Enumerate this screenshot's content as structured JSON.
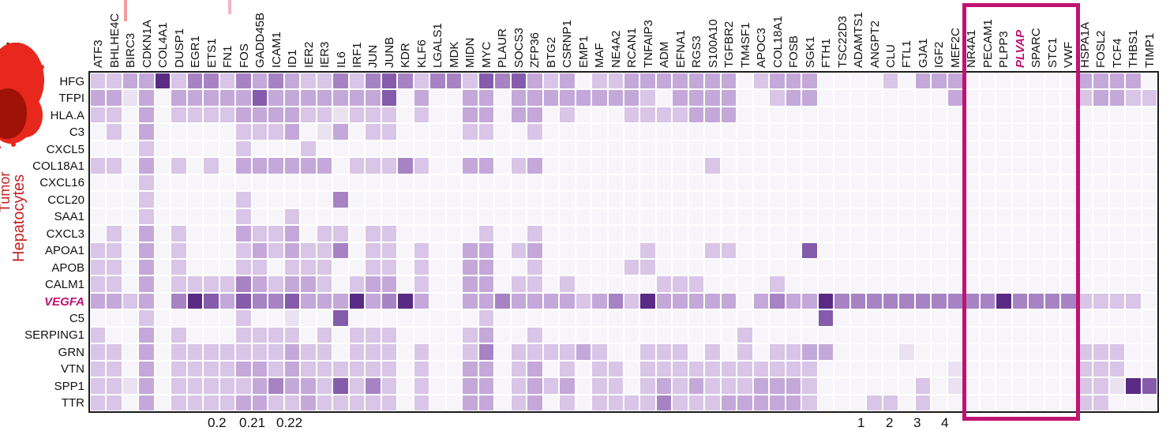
{
  "page": {
    "cropped_title_fragment": "y",
    "side_labels": {
      "hepatocytes": "Hepatocytes",
      "partial_red_label": "Tumor"
    },
    "colors": {
      "highlight_magenta": "#c01371",
      "side_label_red": "#c32222",
      "blob_red": "#e8281c",
      "blob_dark_red": "#9e1306"
    }
  },
  "legend": {
    "left": [
      "0.2",
      "0.21",
      "0.22"
    ],
    "right": [
      "1",
      "2",
      "3",
      "4"
    ]
  },
  "chart_data": {
    "type": "heatmap",
    "title": "",
    "xlabel": "",
    "ylabel": "",
    "columns": [
      "ATF3",
      "BHLHE4C",
      "BIRC3",
      "CDKN1A",
      "COL4A1",
      "DUSP1",
      "EGR1",
      "ETS1",
      "FN1",
      "FOS",
      "GADD45B",
      "ICAM1",
      "ID1",
      "IER2",
      "IER3",
      "IL6",
      "IRF1",
      "JUN",
      "JUNB",
      "KDR",
      "KLF6",
      "LGALS1",
      "MDK",
      "MIDN",
      "MYC",
      "PLAUR",
      "SOCS3",
      "ZFP36",
      "BTG2",
      "CSRNP1",
      "EMP1",
      "MAF",
      "NE4A2",
      "RCAN1",
      "TNFAIP3",
      "ADM",
      "EFNA1",
      "RGS3",
      "S100A10",
      "TGFBR2",
      "TM4SF1",
      "APOC3",
      "COL18A1",
      "FOSB",
      "SGK1",
      "FTH1",
      "TSC22D3",
      "ADAMTS1",
      "ANGPT2",
      "CLU",
      "FTL1",
      "GJA1",
      "IGF2",
      "MEF2C",
      "NR4A1",
      "PECAM1",
      "PLPP3",
      "PLVAP",
      "SPARC",
      "STC1",
      "VWF",
      "HSPA1A",
      "FOSL2",
      "TCF4",
      "THBS1",
      "TIMP1"
    ],
    "rows": [
      "HFG",
      "TFPI",
      "HLA.A",
      "C3",
      "CXCL5",
      "COL18A1",
      "CXCL16",
      "CCL20",
      "SAA1",
      "CXCL3",
      "APOA1",
      "APOB",
      "CALM1",
      "VEGFA",
      "C5",
      "SERPING1",
      "GRN",
      "VTN",
      "SPP1",
      "TTR"
    ],
    "values_scale": "ordinal shading level per cell, 0 = near-white to 6 = darkest purple, estimated from pixel intensity",
    "palette": [
      "#f7f5f9",
      "#eae1f1",
      "#d9c5e7",
      "#c5a8da",
      "#a783c4",
      "#855bab",
      "#5a2b85"
    ],
    "values": [
      "223362442434322424542442545323022333333302333000020333000000033330",
      "331303333353333333503003303333333320333300233000000003000000023322",
      "220302222333322122202003303302000222233300000000000000000000000000",
      "020300000222301302200002200200000000000000000000000000000000000000",
      "000200000200020000000000000000000000000000000000000000000000000000",
      "220302020333333022242003302300000000002000000000000000000000000000",
      "000200000000000000000000000000000000000000000000000000000000000000",
      "000200000200000400000000000000000000000000000000000000000000000000",
      "000200000200200000000000000000000000000000000000000000000000000000",
      "020302000322302202200000200200000000000000000000000000000000000000",
      "220302000232322402202003302300000020002200005000000000000000000000",
      "220302000220222002202003300200000220000000000000000000000000000000",
      "220302222432332023302003302202000002220000200000000000000000000000",
      "332304653544533363463003343333234263333303433644444444446444422220",
      "000200000200100500000000200000000000000000000500000000000000000000",
      "200302000222202022200002300200000000000020000000000000000000000000",
      "220302222222322022202002402222320022202020223300001000000000022200",
      "220302222332322222202003302302022022222222222000000001000000022200",
      "221302222234332524202003302323022023232223332000000201000000022165",
      "220302222332232222202003302302022224222333332000220200000000022000"
    ],
    "highlighted_row": "VEGFA",
    "highlighted_column_label": "PLVAP",
    "highlighted_columns_box": [
      "NR4A1",
      "PECAM1",
      "PLPP3",
      "PLVAP",
      "SPARC",
      "STC1",
      "VWF"
    ],
    "grid": true,
    "legend_position": "bottom (cut off by crop)",
    "partial_axis_text_bottom_left": [
      "0.2",
      "0.21",
      "0.22"
    ],
    "partial_axis_text_bottom_right": [
      "1",
      "2",
      "3",
      "4"
    ]
  }
}
